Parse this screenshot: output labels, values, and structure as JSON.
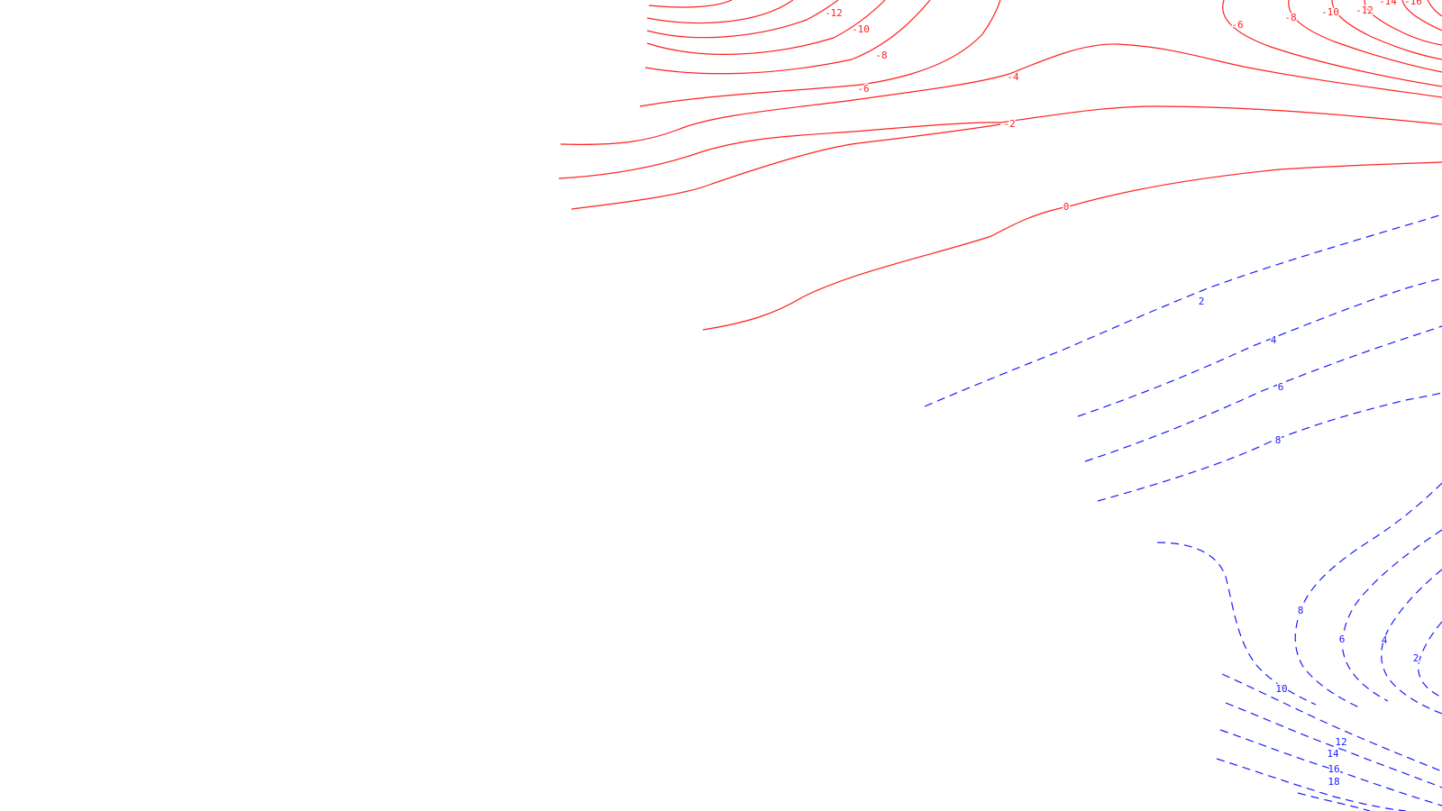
{
  "colors": {
    "background": "#ffffff",
    "negative_contours": "#ff2020",
    "positive_contours": "#1a1aff"
  },
  "contour_style": {
    "negative": "solid",
    "positive": "dashed"
  },
  "negative_labels": {
    "m16": "-16",
    "m14": "-14",
    "m12_left": "-12",
    "m12_right": "-12",
    "m10_left": "-10",
    "m10_right": "-10",
    "m8_left": "-8",
    "m8_right": "-8",
    "m6_left": "-6",
    "m6_right": "-6",
    "m4": "-4",
    "m2": "-2",
    "zero": "0"
  },
  "positive_labels": {
    "upper_2": "2",
    "upper_4": "4",
    "upper_6": "6",
    "upper_8": "8",
    "lower_8": "8",
    "lower_6": "6",
    "lower_4": "4",
    "lower_2": "2",
    "lower_10": "10",
    "lower_12": "12",
    "lower_14": "14",
    "lower_16": "16",
    "lower_18": "18"
  }
}
